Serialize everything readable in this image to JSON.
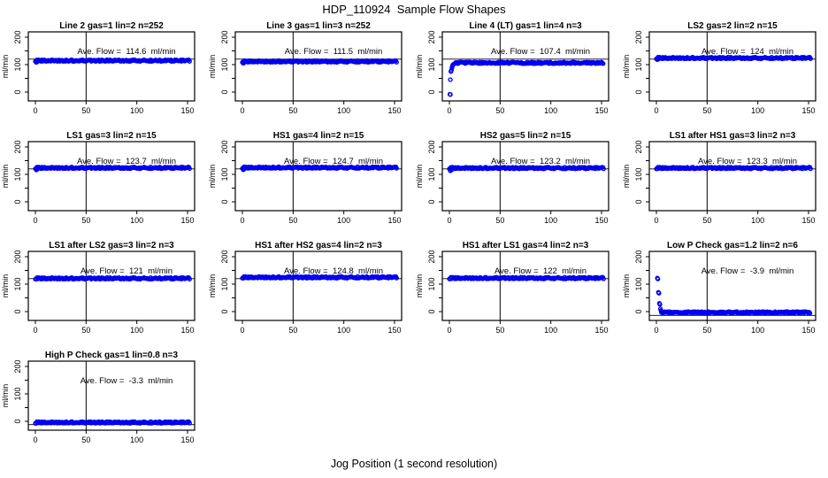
{
  "style": {
    "point_color": "#0000EE",
    "axis_color": "#000000",
    "background": "#FFFFFF"
  },
  "chart_data": {
    "type": "scatter",
    "title": "HDP_110924  Sample Flow Shapes",
    "xlabel": "Jog Position (1 second resolution)",
    "ylabel": "ml/min",
    "grid_layout": "4 columns x 4 rows, 13 panels",
    "xlim": [
      -7,
      158
    ],
    "ylim": [
      -31,
      216
    ],
    "xticks": [
      0,
      50,
      100,
      150
    ],
    "yticks_all": [
      0,
      50,
      100,
      150,
      200
    ],
    "yticks_labeled": [
      0,
      100,
      200
    ],
    "vline_x": 50,
    "subplots": [
      {
        "title": "Line 2 gas=1 lin=2 n=252",
        "ave_label": "Ave. Flow =  114.6  ml/min",
        "ave_flow": 114.6,
        "n": 252,
        "band": {
          "from": 0,
          "to": 152,
          "level": 114.6
        },
        "transient": [
          [
            1,
            108
          ],
          [
            2,
            111
          ]
        ],
        "refline": 120
      },
      {
        "title": "Line 3 gas=1 lin=3 n=252",
        "ave_label": "Ave. Flow =  111.5  ml/min",
        "ave_flow": 111.5,
        "n": 252,
        "band": {
          "from": 0,
          "to": 152,
          "level": 111.5
        },
        "transient": [
          [
            1,
            105
          ],
          [
            2,
            108
          ]
        ],
        "refline": 120
      },
      {
        "title": "Line 4 (LT) gas=1 lin=4 n=3",
        "ave_label": "Ave. Flow =  107.4  ml/min",
        "ave_flow": 107.4,
        "n": 3,
        "band": {
          "from": 6,
          "to": 152,
          "level": 106.5
        },
        "transient": [
          [
            0.5,
            -8
          ],
          [
            1,
            -9
          ],
          [
            1,
            45
          ],
          [
            1.5,
            75
          ],
          [
            2,
            80
          ],
          [
            2.5,
            88
          ],
          [
            3,
            95
          ],
          [
            3.5,
            99
          ],
          [
            4,
            101
          ],
          [
            5,
            103
          ],
          [
            6,
            105
          ]
        ],
        "refline": 120
      },
      {
        "title": "LS2 gas=2 lin=2 n=15",
        "ave_label": "Ave. Flow =  124  ml/min",
        "ave_flow": 124,
        "n": 15,
        "band": {
          "from": 0,
          "to": 152,
          "level": 124
        },
        "transient": [
          [
            1,
            118
          ],
          [
            2,
            120
          ]
        ],
        "refline": 120
      },
      {
        "title": "LS1 gas=3 lin=2 n=15",
        "ave_label": "Ave. Flow =  123.7  ml/min",
        "ave_flow": 123.7,
        "n": 15,
        "band": {
          "from": 0,
          "to": 152,
          "level": 123.7
        },
        "transient": [
          [
            1,
            116
          ],
          [
            2,
            119
          ]
        ],
        "refline": 120
      },
      {
        "title": "HS1 gas=4 lin=2 n=15",
        "ave_label": "Ave. Flow =  124.7  ml/min",
        "ave_flow": 124.7,
        "n": 15,
        "band": {
          "from": 0,
          "to": 152,
          "level": 124.7
        },
        "transient": [
          [
            1,
            117
          ],
          [
            2,
            120
          ]
        ],
        "refline": 120
      },
      {
        "title": "HS2 gas=5 lin=2 n=15",
        "ave_label": "Ave. Flow =  123.2  ml/min",
        "ave_flow": 123.2,
        "n": 15,
        "band": {
          "from": 0,
          "to": 152,
          "level": 123.2
        },
        "transient": [
          [
            1,
            113
          ],
          [
            2,
            116
          ],
          [
            3,
            119
          ]
        ],
        "refline": 120
      },
      {
        "title": "LS1 after HS1 gas=3 lin=2 n=3",
        "ave_label": "Ave. Flow =  123.3  ml/min",
        "ave_flow": 123.3,
        "n": 3,
        "band": {
          "from": 0,
          "to": 152,
          "level": 123.3
        },
        "transient": [],
        "refline": 120
      },
      {
        "title": "LS1 after LS2 gas=3 lin=2 n=3",
        "ave_label": "Ave. Flow =  121  ml/min",
        "ave_flow": 121,
        "n": 3,
        "band": {
          "from": 0,
          "to": 152,
          "level": 121
        },
        "transient": [],
        "refline": 120
      },
      {
        "title": "HS1 after HS2 gas=4 lin=2 n=3",
        "ave_label": "Ave. Flow =  124.8  ml/min",
        "ave_flow": 124.8,
        "n": 3,
        "band": {
          "from": 0,
          "to": 152,
          "level": 124.8
        },
        "transient": [],
        "refline": 120
      },
      {
        "title": "HS1 after LS1 gas=4 lin=2 n=3",
        "ave_label": "Ave. Flow =  122  ml/min",
        "ave_flow": 122,
        "n": 3,
        "band": {
          "from": 0,
          "to": 152,
          "level": 122
        },
        "transient": [],
        "refline": 120
      },
      {
        "title": "Low P Check gas=1.2 lin=2 n=6",
        "ave_label": "Ave. Flow =  -3.9  ml/min",
        "ave_flow": -3.9,
        "n": 6,
        "band": {
          "from": 5,
          "to": 152,
          "level": -3
        },
        "transient": [
          [
            1,
            122
          ],
          [
            1.5,
            119
          ],
          [
            2,
            70
          ],
          [
            2.5,
            67
          ],
          [
            3,
            30
          ],
          [
            3.5,
            26
          ],
          [
            4,
            10
          ],
          [
            4.5,
            4
          ],
          [
            5,
            0
          ]
        ],
        "refline": -14
      },
      {
        "title": "High P Check gas=1 lin=0.8 n=3",
        "ave_label": "Ave. Flow =  -3.3  ml/min",
        "ave_flow": -3.3,
        "n": 3,
        "band": {
          "from": 0,
          "to": 152,
          "level": -4
        },
        "transient": [],
        "refline": -12
      }
    ]
  }
}
